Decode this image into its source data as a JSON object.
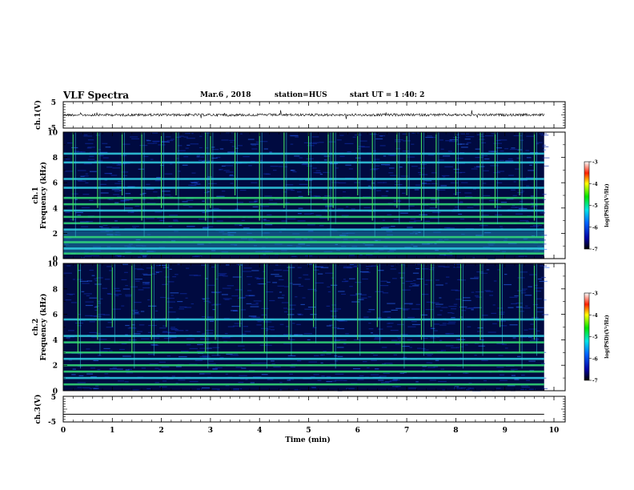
{
  "header": {
    "title": "VLF Spectra",
    "date": "Mar.6 , 2018",
    "station": "station=HUS",
    "start_ut": "start UT = 1 :40: 2"
  },
  "chart_data": [
    {
      "type": "line",
      "panel": "ch1-waveform",
      "ylabel": "ch.1(V)",
      "ylim": [
        -5,
        5
      ],
      "y_ticks": [
        "5",
        "-5"
      ],
      "xlim": [
        0,
        10
      ],
      "series": [
        {
          "x": [
            0,
            9.8
          ],
          "y": [
            0,
            0
          ]
        }
      ]
    },
    {
      "type": "heatmap",
      "panel": "ch1-spectrogram",
      "ylabel": "ch.1\nFrequency (kHz)",
      "ylabel_lines": [
        "ch.1",
        "Frequency (kHz)"
      ],
      "ylim": [
        0,
        10
      ],
      "y_ticks": [
        "0",
        "2",
        "4",
        "6",
        "8",
        "10"
      ],
      "xlim": [
        0,
        10
      ],
      "data_end_min": 9.8,
      "bands_khz": [
        0.4,
        0.8,
        1.3,
        1.7,
        2.3,
        2.8,
        3.3,
        3.8,
        4.3,
        4.8,
        5.6,
        6.3,
        7.6,
        8.3
      ],
      "spikes_min": [
        0.2,
        0.7,
        1.2,
        1.6,
        2.0,
        2.3,
        2.9,
        3.0,
        3.5,
        4.0,
        4.5,
        5.0,
        5.4,
        5.5,
        6.0,
        6.3,
        6.8,
        7.0,
        7.3,
        7.6,
        8.0,
        8.5,
        8.8,
        9.3,
        9.6
      ]
    },
    {
      "type": "heatmap",
      "panel": "ch2-spectrogram",
      "ylabel": "ch.2\nFrequency (kHz)",
      "ylabel_lines": [
        "ch.2",
        "Frequency (kHz)"
      ],
      "ylim": [
        0,
        10
      ],
      "y_ticks": [
        "0",
        "2",
        "4",
        "6",
        "8",
        "10"
      ],
      "xlim": [
        0,
        10
      ],
      "data_end_min": 9.8,
      "bands_khz": [
        0.5,
        1.0,
        1.5,
        2.0,
        2.5,
        3.0,
        3.8,
        4.3,
        5.6
      ],
      "spikes_min": [
        0.3,
        0.7,
        1.0,
        1.4,
        1.8,
        2.1,
        2.9,
        3.1,
        3.6,
        4.1,
        4.6,
        5.1,
        5.5,
        6.0,
        6.4,
        6.9,
        7.3,
        7.5,
        8.1,
        8.5,
        8.9,
        9.3,
        9.6
      ]
    },
    {
      "type": "line",
      "panel": "ch3-waveform",
      "ylabel": "ch.3(V)",
      "ylim": [
        -5,
        5
      ],
      "y_ticks": [
        "5",
        "-5"
      ],
      "xlabel": "Time (min)",
      "xlim": [
        0,
        10
      ],
      "x_ticks": [
        "0",
        "1",
        "2",
        "3",
        "4",
        "5",
        "6",
        "7",
        "8",
        "9",
        "10"
      ],
      "series": [
        {
          "x": [
            0,
            9.8
          ],
          "y": [
            -2,
            -2
          ]
        }
      ]
    }
  ],
  "colorbars": [
    {
      "label": "log(PSD)(V²/Hz)",
      "range": [
        -7,
        -3
      ],
      "ticks": [
        "-3",
        "-4",
        "-5",
        "-6",
        "-7"
      ]
    },
    {
      "label": "log(PSD)(V²/Hz)",
      "range": [
        -7,
        -3
      ],
      "ticks": [
        "-3",
        "-4",
        "-5",
        "-6",
        "-7"
      ]
    }
  ],
  "colors": {
    "background_dark": "#000a40",
    "band_cyan": "#32d2e6",
    "band_green": "#32dc78",
    "spike_green": "#46e664"
  }
}
